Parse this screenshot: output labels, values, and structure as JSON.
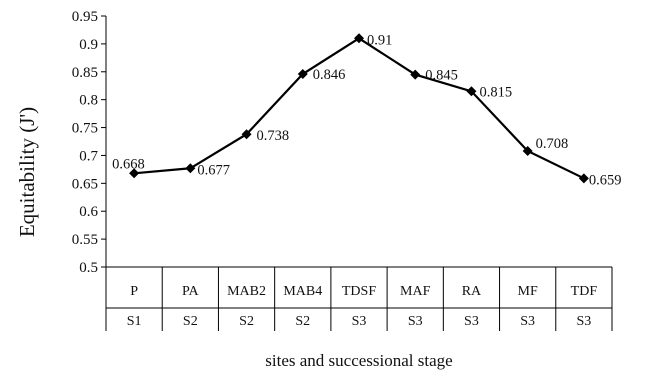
{
  "chart_data": {
    "type": "line",
    "ylabel": "Equitability (J')",
    "xlabel": "sites and successional stage",
    "ylim": [
      0.5,
      0.95
    ],
    "y_ticks": [
      "0.5",
      "0.55",
      "0.6",
      "0.65",
      "0.7",
      "0.75",
      "0.8",
      "0.85",
      "0.9",
      "0.95"
    ],
    "categories": [
      "P",
      "PA",
      "MAB2",
      "MAB4",
      "TDSF",
      "MAF",
      "RA",
      "MF",
      "TDF"
    ],
    "stages": [
      "S1",
      "S2",
      "S2",
      "S2",
      "S3",
      "S3",
      "S3",
      "S3",
      "S3"
    ],
    "values": [
      0.668,
      0.677,
      0.738,
      0.846,
      0.91,
      0.845,
      0.815,
      0.708,
      0.659
    ],
    "data_labels": [
      "0.668",
      "0.677",
      "0.738",
      "0.846",
      "0.91",
      "0.845",
      "0.815",
      "0.708",
      "0.659"
    ],
    "grid": false,
    "line_color": "#000000",
    "marker": "diamond"
  }
}
